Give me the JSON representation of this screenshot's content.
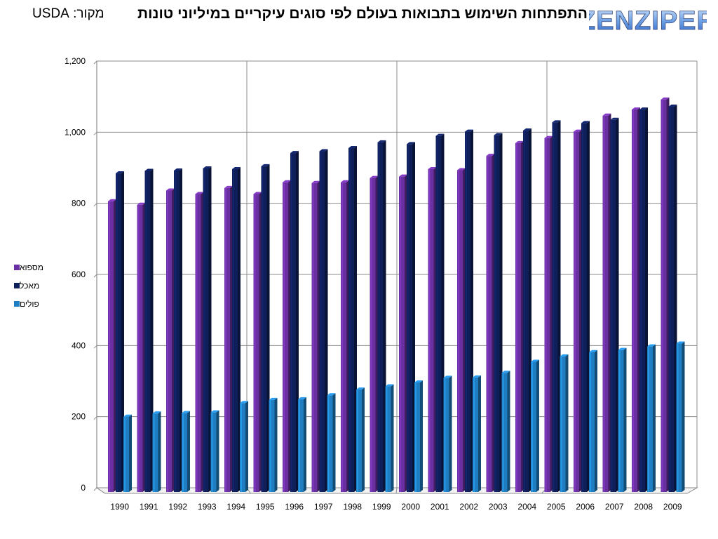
{
  "title": "התפתחות השימוש בתבואות בעולם לפי סוגים עיקריים במיליוני טונות",
  "source": "מקור: USDA",
  "logo_text": "ZENZIPER",
  "colors": {
    "feed": "#6a2fa0",
    "food": "#0f1f5a",
    "industrial": "#1f7ec2",
    "grid": "#8c8c8c"
  },
  "chart_data": {
    "type": "bar",
    "categories": [
      "1990",
      "1991",
      "1992",
      "1993",
      "1994",
      "1995",
      "1996",
      "1997",
      "1998",
      "1999",
      "2000",
      "2001",
      "2002",
      "2003",
      "2004",
      "2005",
      "2006",
      "2007",
      "2008",
      "2009"
    ],
    "series": [
      {
        "name": "מספוא",
        "values": [
          815,
          805,
          845,
          835,
          852,
          835,
          868,
          866,
          868,
          880,
          884,
          905,
          902,
          942,
          978,
          992,
          1010,
          1055,
          1072,
          1100
        ]
      },
      {
        "name": "מאכל",
        "values": [
          893,
          900,
          901,
          907,
          905,
          913,
          950,
          955,
          964,
          980,
          975,
          998,
          1010,
          1000,
          1013,
          1036,
          1034,
          1043,
          1072,
          1080
        ]
      },
      {
        "name": "פולים",
        "values": [
          211,
          220,
          221,
          223,
          249,
          258,
          260,
          271,
          287,
          296,
          307,
          320,
          321,
          334,
          365,
          380,
          392,
          398,
          408,
          416
        ]
      }
    ],
    "yticks": [
      "0",
      "200",
      "400",
      "600",
      "800",
      "1,000",
      "1,200"
    ],
    "ylim": [
      0,
      1200
    ],
    "grid": true,
    "legend": "left"
  }
}
